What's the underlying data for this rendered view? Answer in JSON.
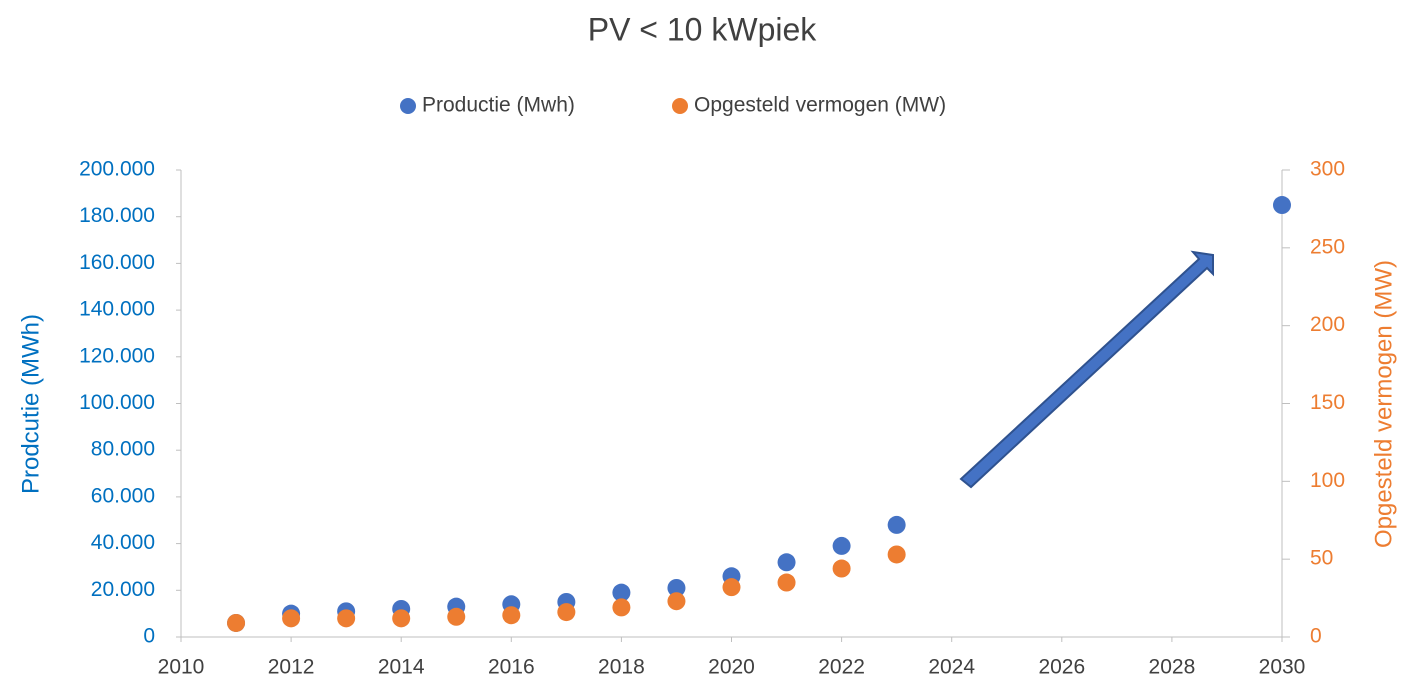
{
  "chart_data": {
    "type": "scatter",
    "title": "PV < 10 kWpiek",
    "ylabel": "Prodcutie (MWh)",
    "y2label": "Opgesteld vermogen (MW)",
    "xlim": [
      2010,
      2030
    ],
    "xticks": [
      2010,
      2012,
      2014,
      2016,
      2018,
      2020,
      2022,
      2024,
      2026,
      2028,
      2030
    ],
    "ylim": [
      0,
      200000
    ],
    "yticks": [
      {
        "value": 0,
        "label": "0"
      },
      {
        "value": 20000,
        "label": "20.000"
      },
      {
        "value": 40000,
        "label": "40.000"
      },
      {
        "value": 60000,
        "label": "60.000"
      },
      {
        "value": 80000,
        "label": "80.000"
      },
      {
        "value": 100000,
        "label": "100.000"
      },
      {
        "value": 120000,
        "label": "120.000"
      },
      {
        "value": 140000,
        "label": "140.000"
      },
      {
        "value": 160000,
        "label": "160.000"
      },
      {
        "value": 180000,
        "label": "180.000"
      },
      {
        "value": 200000,
        "label": "200.000"
      }
    ],
    "y2lim": [
      0,
      300
    ],
    "y2ticks": [
      0,
      50,
      100,
      150,
      200,
      250,
      300
    ],
    "legend": "top",
    "grid": false,
    "series": [
      {
        "name": "Productie (Mwh)",
        "color": "#4472c4",
        "x": [
          2011,
          2012,
          2013,
          2014,
          2015,
          2016,
          2017,
          2018,
          2019,
          2020,
          2021,
          2022,
          2023,
          2030
        ],
        "values": [
          6000,
          10000,
          11000,
          12000,
          13000,
          14000,
          15000,
          19000,
          21000,
          26000,
          32000,
          39000,
          48000,
          185000
        ]
      },
      {
        "name": "Opgesteld vermogen (MW)",
        "color": "#ed7d31",
        "axis": "y2",
        "x": [
          2011,
          2012,
          2013,
          2014,
          2015,
          2016,
          2017,
          2018,
          2019,
          2020,
          2021,
          2022,
          2023
        ],
        "values": [
          9,
          12,
          12,
          12,
          13,
          14,
          16,
          19,
          23,
          32,
          35,
          44,
          53
        ]
      }
    ]
  }
}
